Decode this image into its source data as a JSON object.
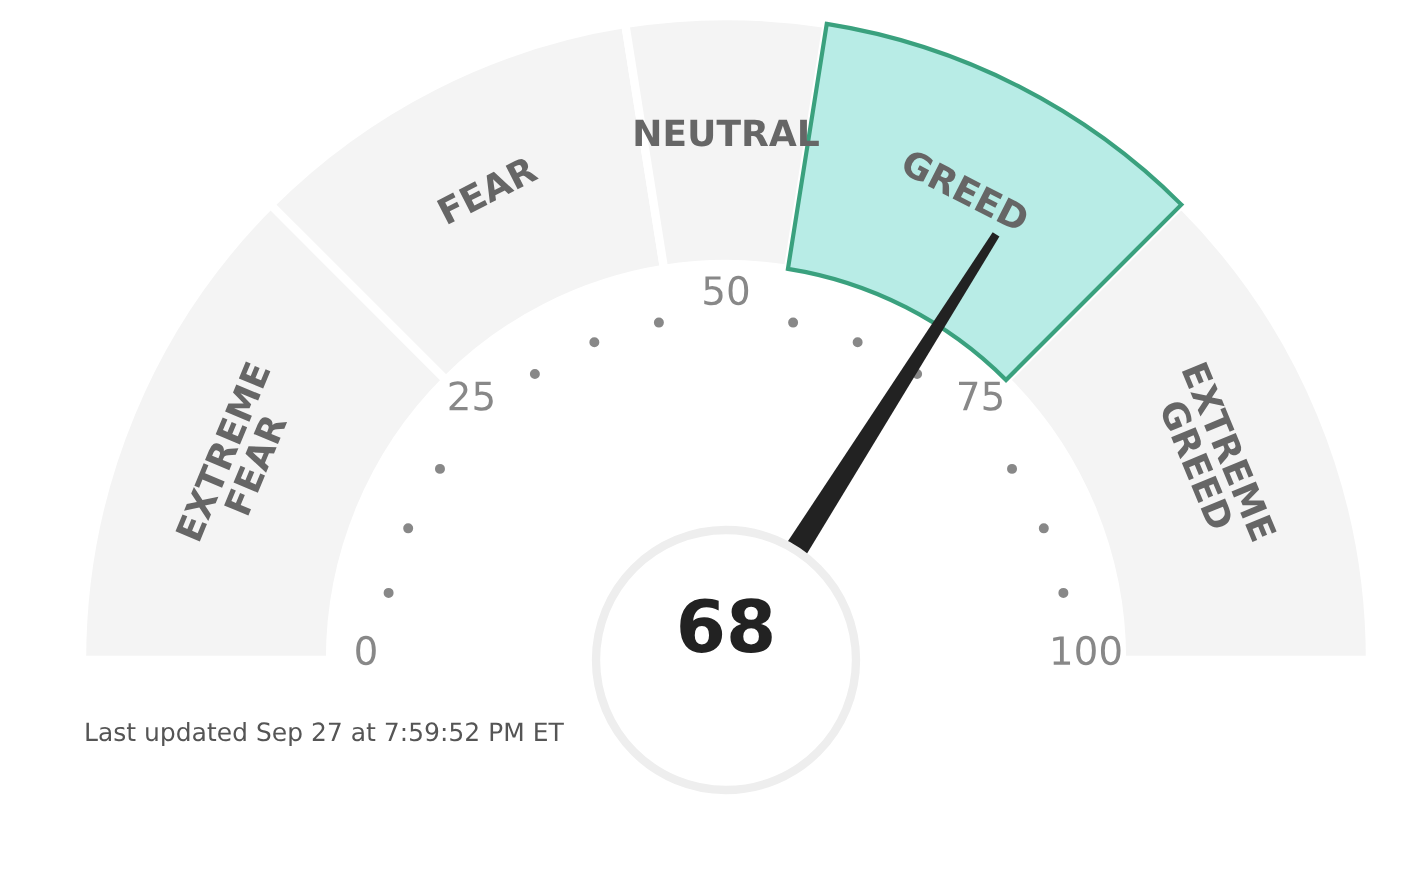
{
  "chart_data": {
    "type": "donut",
    "categories": [
      "EXTREME FEAR",
      "FEAR",
      "NEUTRAL",
      "GREED",
      "EXTREME GREED"
    ],
    "values": [
      25,
      20,
      10,
      20,
      25
    ],
    "colors": [
      "#f4f4f4",
      "#f4f4f4",
      "#f4f4f4",
      "#b8ece6",
      "#f4f4f4"
    ],
    "needle": "GREED",
    "annotations": [
      "0",
      "25",
      "50",
      "75",
      "100",
      "68",
      "Last updated Sep 27 at 7:59:52 PM ET"
    ]
  }
}
